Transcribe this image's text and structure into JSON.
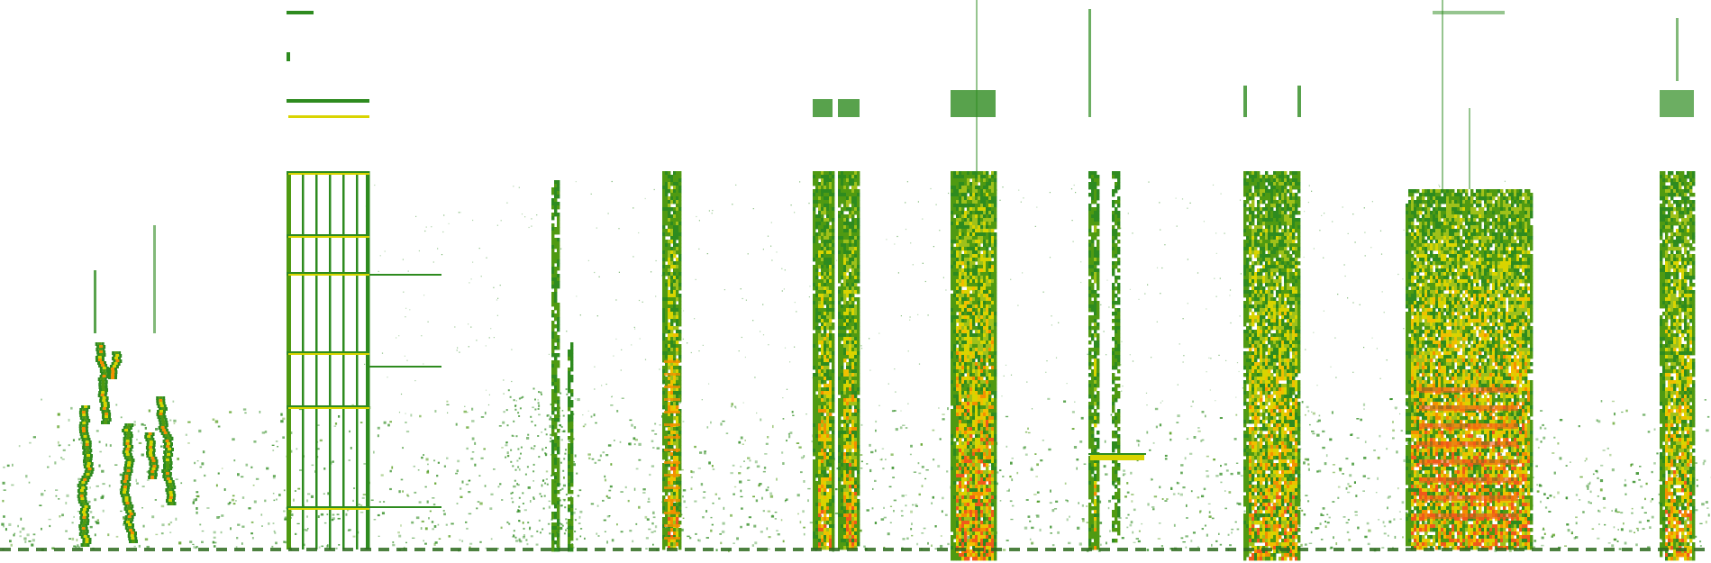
{
  "image": {
    "kind": "spectrogram",
    "background_color": "#ffffff",
    "colormap": [
      "#2e8b1f",
      "#4f9a12",
      "#9fc11a",
      "#d9d400",
      "#f0c000",
      "#f39000",
      "#f05a1a"
    ],
    "baseline_color": "#2e6b1f"
  }
}
